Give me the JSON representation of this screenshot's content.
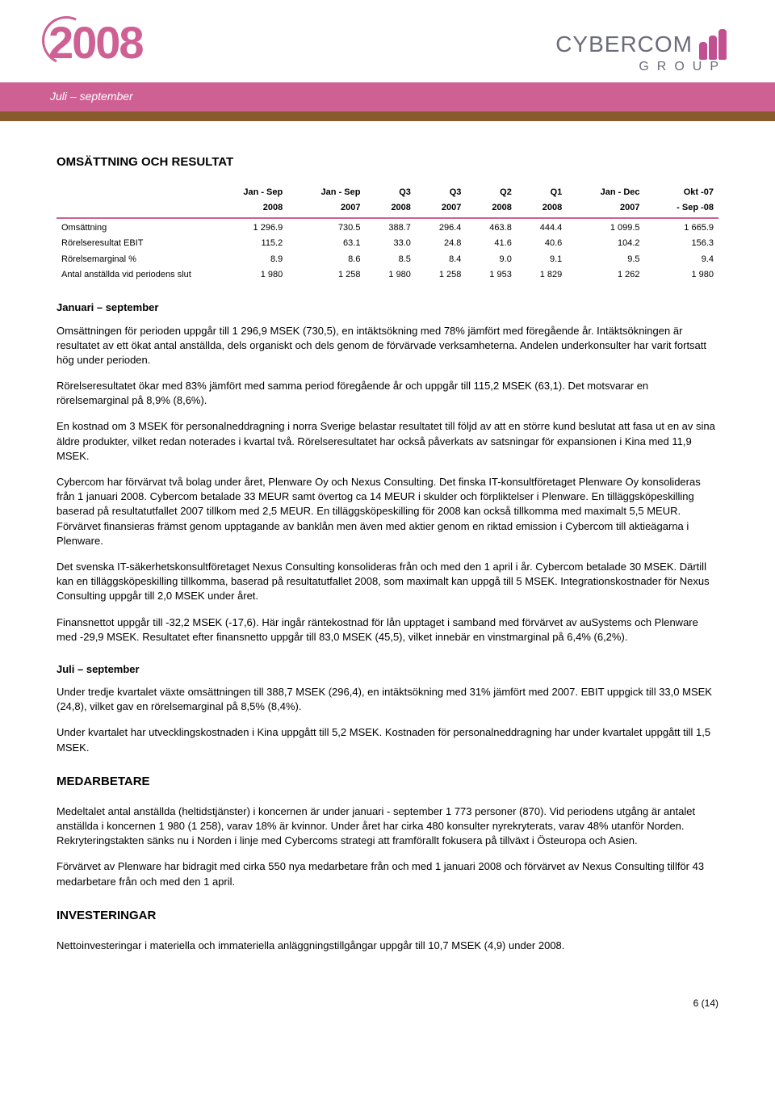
{
  "header": {
    "year": "2008",
    "period": "Juli – september",
    "company_top": "CYBERCOM",
    "company_bottom": "GROUP",
    "band_color": "#ce6094",
    "band2_color": "#875b2c",
    "logo_color": "#c05090"
  },
  "section1_title": "OMSÄTTNING OCH RESULTAT",
  "table": {
    "header_row1": [
      "",
      "Jan - Sep",
      "Jan - Sep",
      "Q3",
      "Q3",
      "Q2",
      "Q1",
      "Jan - Dec",
      "Okt -07"
    ],
    "header_row2": [
      "",
      "2008",
      "2007",
      "2008",
      "2007",
      "2008",
      "2008",
      "2007",
      "- Sep -08"
    ],
    "rows": [
      {
        "label": "Omsättning",
        "cells": [
          "1 296.9",
          "730.5",
          "388.7",
          "296.4",
          "463.8",
          "444.4",
          "1 099.5",
          "1 665.9"
        ]
      },
      {
        "label": "Rörelseresultat EBIT",
        "cells": [
          "115.2",
          "63.1",
          "33.0",
          "24.8",
          "41.6",
          "40.6",
          "104.2",
          "156.3"
        ]
      },
      {
        "label": "Rörelsemarginal %",
        "cells": [
          "8.9",
          "8.6",
          "8.5",
          "8.4",
          "9.0",
          "9.1",
          "9.5",
          "9.4"
        ]
      },
      {
        "label": "Antal anställda vid periodens slut",
        "cells": [
          "1 980",
          "1 258",
          "1 980",
          "1 258",
          "1 953",
          "1 829",
          "1 262",
          "1 980"
        ]
      }
    ],
    "col_count": 8,
    "font_size": 11,
    "rule_color": "#ce6094"
  },
  "sub_jan_sep": "Januari – september",
  "p1": "Omsättningen för perioden uppgår till 1 296,9 MSEK (730,5), en intäktsökning med 78% jämfört med föregående år. Intäktsökningen är resultatet av ett ökat antal anställda, dels organiskt och dels genom de förvärvade verksamheterna. Andelen underkonsulter har varit fortsatt hög under perioden.",
  "p2": "Rörelseresultatet ökar med 83% jämfört med samma period föregående år och uppgår till 115,2 MSEK (63,1). Det motsvarar en rörelsemarginal på 8,9% (8,6%).",
  "p3": "En kostnad om 3 MSEK för personalneddragning i norra Sverige belastar resultatet till följd av att en större kund beslutat att fasa ut en av sina äldre produkter, vilket redan noterades i kvartal två. Rörelseresultatet har också påverkats av satsningar för expansionen i Kina med 11,9 MSEK.",
  "p4": "Cybercom har förvärvat två bolag under året, Plenware Oy och Nexus Consulting. Det finska IT-konsultföretaget Plenware Oy konsolideras från 1 januari 2008. Cybercom betalade 33 MEUR samt övertog ca 14 MEUR i skulder och förpliktelser i Plenware. En tilläggsköpeskilling baserad på resultatutfallet 2007 tillkom med 2,5 MEUR. En tilläggsköpeskilling för 2008 kan också tillkomma med maximalt 5,5 MEUR. Förvärvet finansieras främst genom upptagande av banklån men även med aktier genom en riktad emission i Cybercom till aktieägarna i Plenware.",
  "p5": "Det svenska IT-säkerhetskonsultföretaget Nexus Consulting konsolideras från och med den 1 april i år. Cybercom betalade 30 MSEK. Därtill kan en tilläggsköpeskilling tillkomma, baserad på resultatutfallet 2008, som maximalt kan uppgå till 5 MSEK. Integrationskostnader för Nexus Consulting uppgår till 2,0 MSEK under året.",
  "p6": "Finansnettot uppgår till -32,2 MSEK (-17,6). Här ingår räntekostnad för lån upptaget i samband med förvärvet av auSystems och Plenware med -29,9 MSEK. Resultatet efter finansnetto uppgår till 83,0 MSEK (45,5), vilket innebär en vinstmarginal på 6,4% (6,2%).",
  "sub_jul_sep": "Juli – september",
  "p7": "Under tredje kvartalet växte omsättningen till 388,7 MSEK (296,4), en intäktsökning med 31% jämfört med 2007. EBIT uppgick till 33,0 MSEK (24,8), vilket gav en rörelsemarginal på 8,5% (8,4%).",
  "p8": "Under kvartalet har utvecklingskostnaden i Kina uppgått till 5,2 MSEK. Kostnaden för personalneddragning har under kvartalet uppgått till 1,5 MSEK.",
  "section2_title": "MEDARBETARE",
  "p9": "Medeltalet antal anställda (heltidstjänster) i koncernen är under januari - september 1 773 personer (870). Vid periodens utgång är antalet anställda i koncernen 1 980 (1 258), varav 18% är kvinnor. Under året har cirka 480 konsulter nyrekryterats, varav 48%  utanför Norden. Rekryteringstakten sänks nu i Norden i linje med Cybercoms strategi att framförallt fokusera på tillväxt i Östeuropa och Asien.",
  "p10": "Förvärvet av Plenware har bidragit med cirka 550 nya medarbetare från och med 1 januari 2008 och förvärvet av Nexus Consulting tillför 43 medarbetare från och med den 1 april.",
  "section3_title": "INVESTERINGAR",
  "p11": "Nettoinvesteringar i materiella och immateriella anläggningstillgångar uppgår till 10,7 MSEK (4,9) under 2008.",
  "footer": "6 (14)"
}
